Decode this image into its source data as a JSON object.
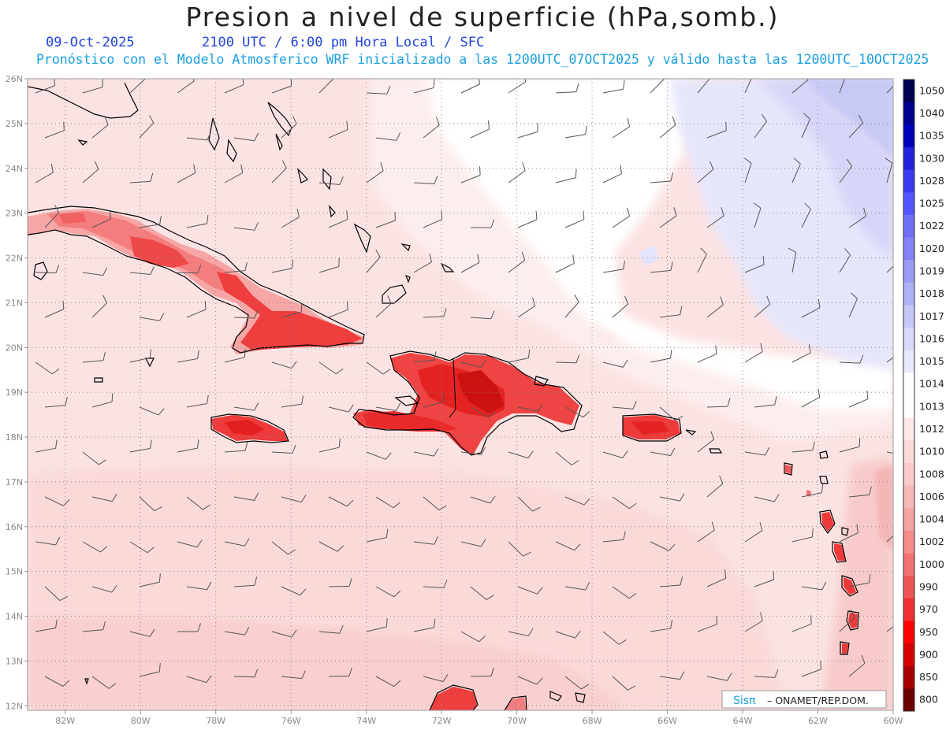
{
  "header": {
    "title": "Presion a nivel de superficie (hPa,somb.)",
    "date": "09-Oct-2025",
    "time": "2100 UTC / 6:00 pm Hora Local / SFC",
    "subtitle": "Pronóstico con el Modelo Atmosferico WRF inicializado a las 1200UTC_07OCT2025 y válido hasta las  1200UTC_10OCT2025"
  },
  "map": {
    "lon_range": [
      -83.0,
      -60.0
    ],
    "lat_range": [
      11.9,
      26.0
    ],
    "lon_ticks": [
      "82W",
      "80W",
      "78W",
      "76W",
      "74W",
      "72W",
      "70W",
      "68W",
      "66W",
      "64W",
      "62W",
      "60W"
    ],
    "lat_ticks": [
      "26N",
      "25N",
      "24N",
      "23N",
      "22N",
      "21N",
      "20N",
      "19N",
      "18N",
      "17N",
      "16N",
      "15N",
      "14N",
      "13N",
      "12N"
    ],
    "grid": "dotted",
    "background_color": "#fbe0e0",
    "land_color": "#ff3b3b",
    "high_pressure_color": "#dcdcfb"
  },
  "colorbar": {
    "levels": [
      "1050",
      "1040",
      "1035",
      "1030",
      "1028",
      "1025",
      "1022",
      "1020",
      "1019",
      "1018",
      "1017",
      "1016",
      "1015",
      "1014",
      "1013",
      "1012",
      "1010",
      "1008",
      "1006",
      "1004",
      "1002",
      "1000",
      "990",
      "970",
      "950",
      "900",
      "850",
      "800"
    ],
    "colors": [
      "#000050",
      "#00008e",
      "#0000bb",
      "#2222dd",
      "#3a3aee",
      "#5555ff",
      "#6f6ff6",
      "#8383f6",
      "#9b9bf6",
      "#b0b0f8",
      "#c6c6fa",
      "#d8d8fb",
      "#e8e8fc",
      "#ffffff",
      "#ffffff",
      "#ffe8e8",
      "#fddada",
      "#fbcaca",
      "#f9b8b8",
      "#f6a3a3",
      "#f58c8c",
      "#f27272",
      "#ef5555",
      "#f03030",
      "#ff0000",
      "#d60000",
      "#a80000",
      "#6a0000"
    ]
  },
  "credit": {
    "brand": "Sisπ",
    "org": "– ONAMET/REP.DOM."
  }
}
